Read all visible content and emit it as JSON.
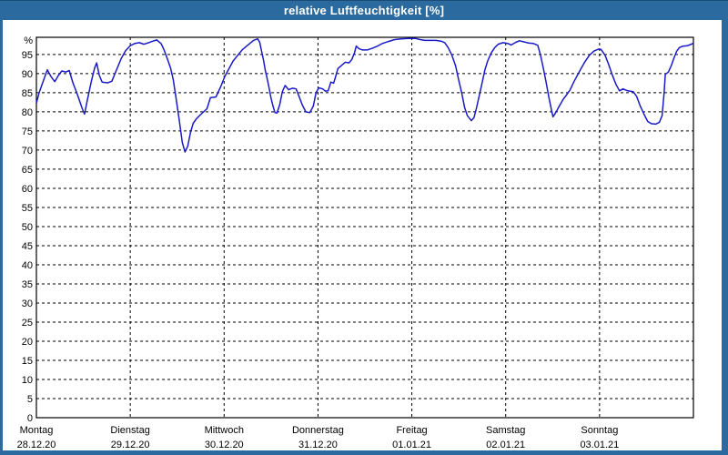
{
  "window": {
    "title": "relative Luftfeuchtigkeit [%]"
  },
  "colors": {
    "titlebar_bg": "#2a6a9e",
    "titlebar_text": "#ffffff",
    "frame": "#2a6a9e",
    "plot_bg": "#ffffff",
    "plot_border": "#000000",
    "grid": "#000000",
    "line": "#1a1ac8",
    "label_text": "#000000"
  },
  "chart_data": {
    "type": "line",
    "title": "relative Luftfeuchtigkeit [%]",
    "ylabel": "%",
    "xlabel": "",
    "grid": true,
    "legend": "none",
    "ylim": [
      0,
      99.5
    ],
    "xlim_hours": [
      0,
      168
    ],
    "y_ticks": [
      0,
      5,
      10,
      15,
      20,
      25,
      30,
      35,
      40,
      45,
      50,
      55,
      60,
      65,
      70,
      75,
      80,
      85,
      90,
      95
    ],
    "x_days": [
      {
        "name": "Montag",
        "date": "28.12.20"
      },
      {
        "name": "Dienstag",
        "date": "29.12.20"
      },
      {
        "name": "Mittwoch",
        "date": "30.12.20"
      },
      {
        "name": "Donnerstag",
        "date": "31.12.20"
      },
      {
        "name": "Freitag",
        "date": "01.01.21"
      },
      {
        "name": "Samstag",
        "date": "02.01.21"
      },
      {
        "name": "Sonntag",
        "date": "03.01.21"
      }
    ],
    "series": [
      {
        "name": "relative Luftfeuchtigkeit",
        "unit": "%",
        "x_unit": "hours since Montag 28.12.20 00:00",
        "points": [
          [
            0,
            82.3
          ],
          [
            0.7,
            85
          ],
          [
            1.9,
            88.5
          ],
          [
            2.8,
            91
          ],
          [
            3.7,
            89.3
          ],
          [
            4.7,
            87.9
          ],
          [
            5.6,
            89.5
          ],
          [
            6.5,
            90.7
          ],
          [
            7.5,
            90.4
          ],
          [
            8.4,
            90.8
          ],
          [
            9.3,
            87.7
          ],
          [
            10.5,
            84.5
          ],
          [
            11.7,
            80.9
          ],
          [
            12.3,
            79.4
          ],
          [
            13,
            83
          ],
          [
            14,
            87.8
          ],
          [
            14.9,
            91.5
          ],
          [
            15.4,
            92.8
          ],
          [
            16.1,
            89.5
          ],
          [
            16.8,
            87.8
          ],
          [
            18.2,
            87.6
          ],
          [
            19.3,
            88
          ],
          [
            20.5,
            91
          ],
          [
            21.7,
            94
          ],
          [
            22.8,
            96
          ],
          [
            24,
            97.3
          ],
          [
            25.2,
            97.9
          ],
          [
            26.3,
            98.1
          ],
          [
            27.5,
            97.7
          ],
          [
            28.7,
            98.1
          ],
          [
            29.8,
            98.5
          ],
          [
            30.8,
            98.8
          ],
          [
            31.9,
            97.8
          ],
          [
            32.6,
            96.3
          ],
          [
            33.3,
            94.4
          ],
          [
            34.3,
            91.5
          ],
          [
            35,
            88.4
          ],
          [
            35.7,
            83.7
          ],
          [
            36.6,
            77.3
          ],
          [
            37.3,
            72
          ],
          [
            38,
            69.5
          ],
          [
            38.7,
            71
          ],
          [
            39.4,
            74.6
          ],
          [
            40.1,
            77
          ],
          [
            41,
            78.3
          ],
          [
            42.2,
            79.5
          ],
          [
            43.6,
            80.8
          ],
          [
            44.5,
            83.7
          ],
          [
            45.9,
            83.9
          ],
          [
            47.1,
            86.5
          ],
          [
            48.2,
            89.3
          ],
          [
            49.2,
            91.2
          ],
          [
            50.3,
            93.3
          ],
          [
            51.5,
            94.8
          ],
          [
            52.7,
            96.3
          ],
          [
            54.1,
            97.5
          ],
          [
            55.5,
            98.7
          ],
          [
            56.6,
            99.1
          ],
          [
            57.1,
            98.2
          ],
          [
            57.6,
            95.8
          ],
          [
            58.1,
            93.4
          ],
          [
            58.5,
            91
          ],
          [
            59,
            88.7
          ],
          [
            59.5,
            86.3
          ],
          [
            60,
            83.5
          ],
          [
            60.5,
            81.5
          ],
          [
            61,
            79.8
          ],
          [
            61.5,
            79.7
          ],
          [
            62.2,
            81.8
          ],
          [
            62.9,
            85.3
          ],
          [
            63.6,
            86.9
          ],
          [
            64.5,
            85.8
          ],
          [
            65.5,
            86.2
          ],
          [
            66.4,
            86
          ],
          [
            67.1,
            84.2
          ],
          [
            68,
            81.8
          ],
          [
            68.9,
            80
          ],
          [
            69.9,
            79.8
          ],
          [
            70.8,
            81.5
          ],
          [
            71.5,
            85
          ],
          [
            72.2,
            86.3
          ],
          [
            73.2,
            86
          ],
          [
            73.9,
            85.4
          ],
          [
            74.6,
            85.5
          ],
          [
            75.3,
            87.8
          ],
          [
            76,
            87.5
          ],
          [
            76.4,
            88.8
          ],
          [
            77.1,
            91.3
          ],
          [
            78.1,
            92.2
          ],
          [
            79,
            93
          ],
          [
            79.9,
            92.8
          ],
          [
            80.6,
            93.6
          ],
          [
            81.3,
            95.3
          ],
          [
            81.8,
            97.2
          ],
          [
            82.5,
            96.5
          ],
          [
            83.4,
            96.2
          ],
          [
            84.6,
            96.2
          ],
          [
            85.8,
            96.6
          ],
          [
            87,
            97.1
          ],
          [
            88.3,
            97.8
          ],
          [
            90,
            98.4
          ],
          [
            91.6,
            98.9
          ],
          [
            93.2,
            99.1
          ],
          [
            95.1,
            99.2
          ],
          [
            97,
            99.2
          ],
          [
            98.1,
            98.9
          ],
          [
            99.3,
            98.7
          ],
          [
            100.7,
            98.7
          ],
          [
            102.1,
            98.7
          ],
          [
            103.5,
            98.5
          ],
          [
            104.4,
            98.1
          ],
          [
            105.3,
            96.8
          ],
          [
            106.2,
            94.9
          ],
          [
            107.2,
            92
          ],
          [
            107.9,
            88.7
          ],
          [
            108.8,
            84.7
          ],
          [
            109.5,
            81.1
          ],
          [
            110.2,
            79
          ],
          [
            111.2,
            77.7
          ],
          [
            111.9,
            78.5
          ],
          [
            112.6,
            81.3
          ],
          [
            113.3,
            84.5
          ],
          [
            114,
            87.7
          ],
          [
            114.7,
            91
          ],
          [
            115.4,
            93.3
          ],
          [
            116.3,
            95.4
          ],
          [
            117.2,
            96.8
          ],
          [
            118.1,
            97.7
          ],
          [
            119.3,
            98.1
          ],
          [
            120.5,
            97.9
          ],
          [
            121.4,
            97.5
          ],
          [
            122.6,
            98.2
          ],
          [
            123.5,
            98.6
          ],
          [
            124.7,
            98.3
          ],
          [
            125.8,
            98
          ],
          [
            127,
            97.9
          ],
          [
            128.2,
            97.4
          ],
          [
            128.9,
            94.8
          ],
          [
            129.6,
            91.5
          ],
          [
            130.3,
            87.9
          ],
          [
            131,
            84
          ],
          [
            131.7,
            80.5
          ],
          [
            132.1,
            78.7
          ],
          [
            132.8,
            79.8
          ],
          [
            133.7,
            81.5
          ],
          [
            134.7,
            83.3
          ],
          [
            135.6,
            84.5
          ],
          [
            136.5,
            85.8
          ],
          [
            137.4,
            87.8
          ],
          [
            138.4,
            89.7
          ],
          [
            139.3,
            91.4
          ],
          [
            140.2,
            93
          ],
          [
            141.4,
            94.8
          ],
          [
            142.6,
            95.9
          ],
          [
            143.7,
            96.4
          ],
          [
            144.4,
            96.3
          ],
          [
            145.4,
            94.8
          ],
          [
            146.3,
            92.5
          ],
          [
            147.2,
            89.8
          ],
          [
            148.2,
            87.2
          ],
          [
            149.1,
            85.5
          ],
          [
            150,
            86
          ],
          [
            151.2,
            85.5
          ],
          [
            152.6,
            85.3
          ],
          [
            153.5,
            84
          ],
          [
            154.4,
            81.5
          ],
          [
            155.4,
            79.3
          ],
          [
            156.3,
            77.5
          ],
          [
            157.2,
            76.9
          ],
          [
            158.4,
            76.8
          ],
          [
            159.3,
            77.3
          ],
          [
            160,
            79
          ],
          [
            160.5,
            85
          ],
          [
            160.8,
            89.8
          ],
          [
            161.6,
            90.4
          ],
          [
            162.3,
            92
          ],
          [
            163,
            94
          ],
          [
            163.7,
            95.8
          ],
          [
            164.4,
            96.8
          ],
          [
            165.3,
            97.2
          ],
          [
            166.5,
            97.3
          ],
          [
            167.2,
            97.6
          ],
          [
            167.9,
            97.9
          ]
        ]
      }
    ]
  }
}
